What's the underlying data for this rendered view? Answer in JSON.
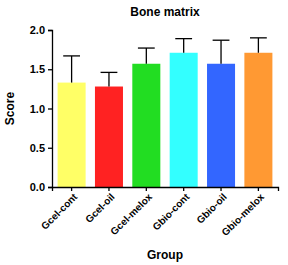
{
  "chart_data": {
    "type": "bar",
    "title": "Bone matrix",
    "x_label": "Group",
    "y_label": "Score",
    "categories": [
      "Gcel-cont",
      "Gcel-oil",
      "Gcel-melox",
      "Gbio-cont",
      "Gbio-oil",
      "Gbio-melox"
    ],
    "values": [
      1.33,
      1.28,
      1.57,
      1.71,
      1.57,
      1.71
    ],
    "errors": [
      0.34,
      0.18,
      0.2,
      0.18,
      0.3,
      0.19
    ],
    "colors": [
      "#ffff66",
      "#ff2222",
      "#22dd22",
      "#33ffff",
      "#3366ff",
      "#ff9933"
    ],
    "ylim": [
      0,
      2
    ],
    "yticks": [
      {
        "value": 0,
        "label": "0.0"
      },
      0.5,
      {
        "value": 1,
        "label": "1.0"
      },
      1.5,
      {
        "value": 2,
        "label": "2.0"
      }
    ],
    "grid": false
  }
}
